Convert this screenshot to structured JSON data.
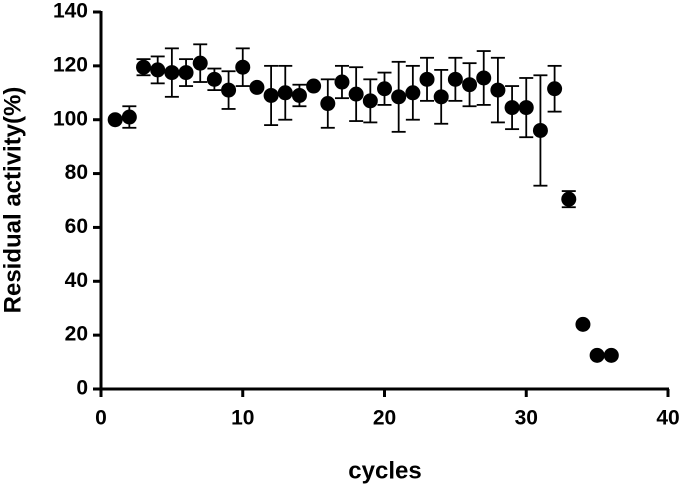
{
  "chart_data": {
    "type": "scatter",
    "xlabel": "cycles",
    "ylabel": "Residual activity(%)",
    "x": [
      1,
      2,
      3,
      4,
      5,
      6,
      7,
      8,
      9,
      10,
      11,
      12,
      13,
      14,
      15,
      16,
      17,
      18,
      19,
      20,
      21,
      22,
      23,
      24,
      25,
      26,
      27,
      28,
      29,
      30,
      31,
      32,
      33,
      34,
      35,
      36
    ],
    "values": [
      100,
      101,
      119.5,
      118.5,
      117.5,
      117.5,
      121,
      115,
      111,
      119.5,
      112,
      109,
      110,
      109,
      112.5,
      106,
      114,
      109.5,
      107,
      111.5,
      108.5,
      110,
      115,
      108.5,
      115,
      113,
      115.5,
      111,
      104.5,
      104.5,
      96,
      111.5,
      70.5,
      24,
      12.5,
      12.5
    ],
    "errors": [
      null,
      4,
      3,
      5,
      9,
      5,
      7,
      4,
      7,
      7,
      null,
      11,
      10,
      4,
      null,
      9,
      6,
      10,
      8,
      6,
      13,
      10,
      8,
      10,
      8,
      8,
      10,
      12,
      8,
      11,
      20.5,
      8.5,
      3,
      null,
      null,
      null
    ],
    "color": "#000000",
    "xlim": [
      0,
      40
    ],
    "xticks": [
      0,
      10,
      20,
      30,
      40
    ],
    "ylim": [
      0,
      140
    ],
    "yticks": [
      0,
      20,
      40,
      60,
      80,
      100,
      120,
      140
    ]
  }
}
